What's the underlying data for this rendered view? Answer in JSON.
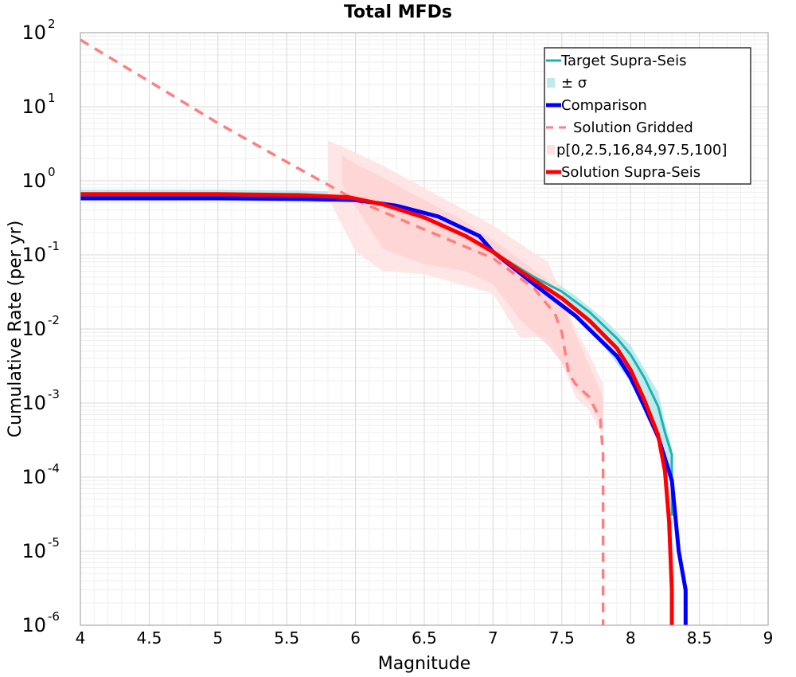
{
  "chart_data": {
    "type": "line",
    "title": "Total MFDs",
    "xlabel": "Magnitude",
    "ylabel": "Cumulative Rate (per yr)",
    "xlim": [
      4,
      9
    ],
    "ylim": [
      1e-06,
      100
    ],
    "yscale": "log",
    "grid": true,
    "legend_position": "top-right",
    "x_ticks": [
      "4",
      "4.5",
      "5",
      "5.5",
      "6",
      "6.5",
      "7",
      "7.5",
      "8",
      "8.5",
      "9"
    ],
    "y_ticks": [
      {
        "base": "10",
        "exp": "2"
      },
      {
        "base": "10",
        "exp": "1"
      },
      {
        "base": "10",
        "exp": "0"
      },
      {
        "base": "10",
        "exp": "-1"
      },
      {
        "base": "10",
        "exp": "-2"
      },
      {
        "base": "10",
        "exp": "-3"
      },
      {
        "base": "10",
        "exp": "-4"
      },
      {
        "base": "10",
        "exp": "-5"
      },
      {
        "base": "10",
        "exp": "-6"
      }
    ],
    "legend": [
      {
        "label": "Target Supra-Seis",
        "kind": "line",
        "color": "#1ab5b0"
      },
      {
        "label": "± σ",
        "kind": "band",
        "color": "#bfe9eb"
      },
      {
        "label": "Comparison",
        "kind": "line",
        "color": "#0000ff"
      },
      {
        "label": "Solution Gridded",
        "kind": "dashed",
        "color": "#ff7f7f"
      },
      {
        "label": "p[0,2.5,16,84,97.5,100]",
        "kind": "band",
        "color": "#ffe0e0"
      },
      {
        "label": "Solution Supra-Seis",
        "kind": "line",
        "color": "#ff0000"
      }
    ],
    "bands": [
      {
        "name": "± σ",
        "color": "#b5e6e9",
        "opacity": 0.85,
        "x": [
          4.0,
          5.0,
          5.6,
          6.0,
          6.4,
          6.8,
          7.0,
          7.4,
          7.6,
          7.8,
          8.0,
          8.2,
          8.25,
          8.3
        ],
        "low": [
          0.54,
          0.54,
          0.52,
          0.5,
          0.33,
          0.16,
          0.09,
          0.028,
          0.014,
          0.006,
          0.0019,
          0.0004,
          0.00017,
          6e-05
        ],
        "high": [
          0.76,
          0.76,
          0.74,
          0.7,
          0.48,
          0.24,
          0.14,
          0.05,
          0.028,
          0.014,
          0.006,
          0.0014,
          0.00055,
          0.00025
        ]
      },
      {
        "name": "p outer",
        "color": "#ffe3e3",
        "opacity": 0.9,
        "x": [
          5.8,
          6.0,
          6.2,
          6.5,
          7.0,
          7.2,
          7.4,
          7.5,
          7.6,
          7.7,
          7.8
        ],
        "low": [
          0.6,
          0.11,
          0.06,
          0.055,
          0.03,
          0.0075,
          0.008,
          0.0035,
          0.0012,
          0.0008,
          0.00035
        ],
        "high": [
          3.5,
          2.4,
          1.6,
          0.8,
          0.25,
          0.14,
          0.08,
          0.03,
          0.01,
          0.0045,
          0.0018
        ]
      },
      {
        "name": "p inner",
        "color": "#ffd0d0",
        "opacity": 0.75,
        "x": [
          5.9,
          6.0,
          6.2,
          6.5,
          6.8,
          7.0,
          7.2,
          7.4,
          7.5,
          7.6,
          7.7,
          7.8
        ],
        "low": [
          0.9,
          0.45,
          0.12,
          0.075,
          0.06,
          0.04,
          0.013,
          0.006,
          0.0035,
          0.0016,
          0.001,
          0.0005
        ],
        "high": [
          2.2,
          1.7,
          1.1,
          0.55,
          0.28,
          0.16,
          0.085,
          0.045,
          0.022,
          0.0085,
          0.0032,
          0.0012
        ]
      }
    ],
    "series": [
      {
        "name": "Solution Gridded",
        "color": "#ff7f7f",
        "width": 3.5,
        "dash": "12,9",
        "x": [
          4.0,
          4.5,
          5.0,
          5.5,
          6.0,
          6.5,
          7.0,
          7.3,
          7.45,
          7.5,
          7.55,
          7.6,
          7.7,
          7.78,
          7.8,
          7.8
        ],
        "y": [
          80,
          22,
          6.0,
          1.8,
          0.55,
          0.22,
          0.09,
          0.035,
          0.016,
          0.009,
          0.0025,
          0.0018,
          0.0012,
          0.0006,
          0.0002,
          1e-06
        ]
      },
      {
        "name": "Target Supra-Seis",
        "color": "#1ab5b0",
        "width": 3,
        "x": [
          4.0,
          5.0,
          5.5,
          5.9,
          6.2,
          6.5,
          6.8,
          7.0,
          7.3,
          7.5,
          7.7,
          7.9,
          8.0,
          8.1,
          8.2,
          8.25,
          8.3,
          8.3
        ],
        "y": [
          0.62,
          0.62,
          0.6,
          0.57,
          0.48,
          0.32,
          0.18,
          0.11,
          0.05,
          0.032,
          0.017,
          0.0075,
          0.0045,
          0.0022,
          0.0009,
          0.0004,
          0.0002,
          3e-05
        ]
      },
      {
        "name": "Comparison",
        "color": "#0000ff",
        "width": 5,
        "x": [
          4.0,
          5.0,
          5.6,
          6.0,
          6.3,
          6.6,
          6.9,
          7.0,
          7.3,
          7.6,
          7.9,
          8.0,
          8.1,
          8.2,
          8.3,
          8.35,
          8.4,
          8.4
        ],
        "y": [
          0.58,
          0.58,
          0.57,
          0.55,
          0.46,
          0.33,
          0.18,
          0.11,
          0.04,
          0.015,
          0.0043,
          0.0022,
          0.0009,
          0.00035,
          9e-05,
          1e-05,
          3e-06,
          1e-06
        ]
      },
      {
        "name": "Solution Supra-Seis",
        "color": "#ff0000",
        "width": 5,
        "x": [
          4.0,
          5.0,
          5.6,
          5.95,
          6.2,
          6.5,
          6.8,
          7.0,
          7.2,
          7.5,
          7.7,
          7.9,
          8.0,
          8.1,
          8.2,
          8.25,
          8.28,
          8.3,
          8.3
        ],
        "y": [
          0.66,
          0.66,
          0.64,
          0.6,
          0.48,
          0.32,
          0.18,
          0.11,
          0.06,
          0.026,
          0.013,
          0.0055,
          0.0028,
          0.0011,
          0.00037,
          0.00012,
          2.5e-05,
          3e-06,
          1e-06
        ]
      }
    ]
  }
}
